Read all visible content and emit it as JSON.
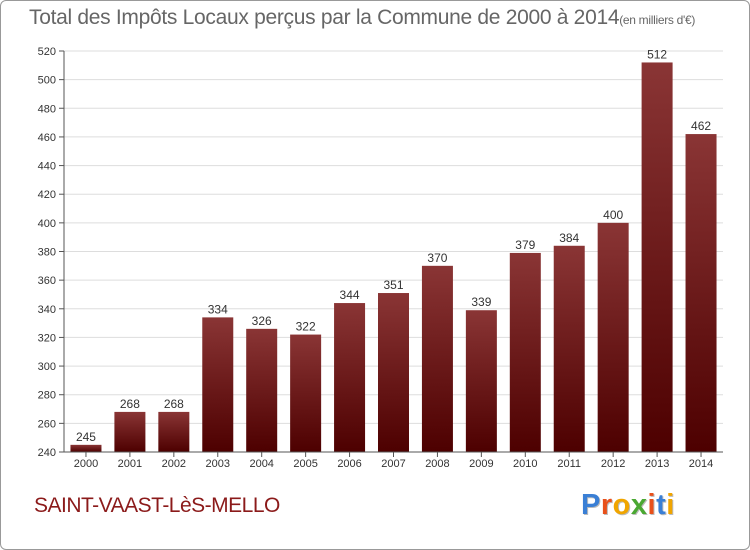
{
  "chart_data": {
    "type": "bar",
    "title": "Total des Impôts Locaux perçus par la Commune de 2000 à 2014",
    "unit_note": "(en milliers d'€)",
    "categories": [
      "2000",
      "2001",
      "2002",
      "2003",
      "2004",
      "2005",
      "2006",
      "2007",
      "2008",
      "2009",
      "2010",
      "2011",
      "2012",
      "2013",
      "2014"
    ],
    "values": [
      245,
      268,
      268,
      334,
      326,
      322,
      344,
      351,
      370,
      339,
      379,
      384,
      400,
      512,
      462
    ],
    "xlabel": "",
    "ylabel": "",
    "ylim": [
      240,
      520
    ],
    "yticks": [
      240,
      260,
      280,
      300,
      320,
      340,
      360,
      380,
      400,
      420,
      440,
      460,
      480,
      500,
      520
    ],
    "grid": true,
    "bar_color_top": "#8a3535",
    "bar_color_bottom": "#4d0000"
  },
  "commune": {
    "name": "SAINT-VAAST-LèS-MELLO",
    "color": "#8b1a1a"
  },
  "logo": {
    "letters": [
      "P",
      "r",
      "o",
      "x",
      "i",
      "t",
      "i"
    ],
    "colors": [
      "#3a7fd5",
      "#e8501a",
      "#f0a500",
      "#4aa832",
      "#e8501a",
      "#3a7fd5",
      "#f0a500"
    ]
  }
}
